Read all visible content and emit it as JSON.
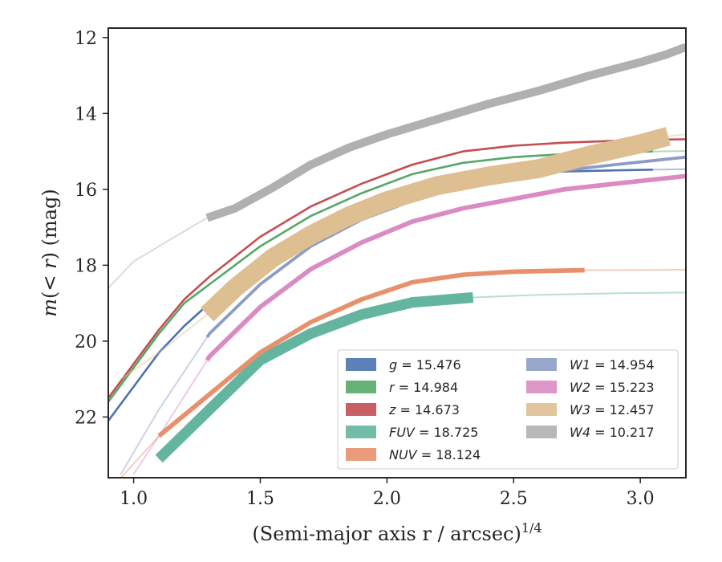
{
  "chart_data": {
    "type": "line",
    "title": "",
    "xlabel": "(Semi-major axis r / arcsec)",
    "xlabel_superscript": "1/4",
    "ylabel": "m(< r) (mag)",
    "xlim": [
      0.9,
      3.18
    ],
    "ylim": [
      23.6,
      11.75
    ],
    "y_inverted": true,
    "x_ticks": [
      1.0,
      1.5,
      2.0,
      2.5,
      3.0
    ],
    "x_tick_labels": [
      "1.0",
      "1.5",
      "2.0",
      "2.5",
      "3.0"
    ],
    "y_ticks": [
      12,
      14,
      16,
      18,
      20,
      22
    ],
    "y_tick_labels": [
      "12",
      "14",
      "16",
      "18",
      "20",
      "22"
    ],
    "grid": false,
    "legend_placement": "lower-right",
    "series": [
      {
        "name": "g = 15.476",
        "band": "g",
        "value": "15.476",
        "color": "#4c72b0",
        "x": [
          0.9,
          1.0,
          1.1,
          1.2,
          1.3,
          1.5,
          1.7,
          1.9,
          2.1,
          2.3,
          2.5,
          2.7,
          2.9,
          3.05,
          3.18
        ],
        "y": [
          22.1,
          21.2,
          20.3,
          19.6,
          19.0,
          18.0,
          17.2,
          16.6,
          16.05,
          15.75,
          15.6,
          15.53,
          15.5,
          15.48,
          15.47
        ],
        "thick_x": [
          0.9,
          3.05
        ],
        "band_width": 0.04
      },
      {
        "name": "r = 14.984",
        "band": "r",
        "value": "14.984",
        "color": "#55a868",
        "x": [
          0.9,
          1.0,
          1.1,
          1.2,
          1.3,
          1.5,
          1.7,
          1.9,
          2.1,
          2.3,
          2.5,
          2.7,
          2.9,
          3.05,
          3.18
        ],
        "y": [
          21.6,
          20.7,
          19.8,
          19.0,
          18.5,
          17.5,
          16.7,
          16.1,
          15.6,
          15.3,
          15.15,
          15.07,
          15.03,
          15.0,
          14.99
        ],
        "thick_x": [
          0.9,
          3.05
        ],
        "band_width": 0.04
      },
      {
        "name": "z = 14.673",
        "band": "z",
        "value": "14.673",
        "color": "#c44e52",
        "x": [
          0.9,
          1.0,
          1.1,
          1.2,
          1.3,
          1.5,
          1.7,
          1.9,
          2.1,
          2.3,
          2.5,
          2.7,
          2.9,
          3.05,
          3.18
        ],
        "y": [
          21.5,
          20.6,
          19.7,
          18.9,
          18.3,
          17.25,
          16.45,
          15.85,
          15.35,
          15.0,
          14.85,
          14.77,
          14.72,
          14.69,
          14.68
        ],
        "thick_x": [
          0.9,
          3.18
        ],
        "band_width": 0.04
      },
      {
        "name": "FUV = 18.725",
        "band": "FUV",
        "value": "18.725",
        "color": "#64b5a0",
        "x": [
          1.1,
          1.3,
          1.5,
          1.7,
          1.9,
          2.1,
          2.34,
          2.6,
          2.9,
          3.18
        ],
        "y": [
          23.1,
          21.8,
          20.5,
          19.8,
          19.3,
          18.98,
          18.85,
          18.78,
          18.74,
          18.72
        ],
        "thick_x": [
          1.1,
          2.34
        ],
        "band_width": 0.28
      },
      {
        "name": "NUV = 18.124",
        "band": "NUV",
        "value": "18.124",
        "color": "#e8906c",
        "x": [
          0.95,
          1.1,
          1.3,
          1.5,
          1.7,
          1.9,
          2.1,
          2.3,
          2.5,
          2.78,
          3.18
        ],
        "y": [
          23.6,
          22.5,
          21.4,
          20.3,
          19.5,
          18.9,
          18.45,
          18.25,
          18.17,
          18.13,
          18.12
        ],
        "thick_x": [
          1.1,
          2.78
        ],
        "band_width": 0.12
      },
      {
        "name": "W1 = 14.954",
        "band": "W1",
        "value": "14.954",
        "color": "#8d9cc5",
        "x": [
          0.95,
          1.1,
          1.3,
          1.5,
          1.7,
          1.9,
          2.1,
          2.3,
          2.5,
          2.7,
          2.9,
          3.18
        ],
        "y": [
          23.5,
          21.8,
          19.8,
          18.5,
          17.5,
          16.8,
          16.3,
          15.9,
          15.7,
          15.5,
          15.35,
          15.15
        ],
        "thick_x": [
          1.29,
          3.18
        ],
        "band_width": 0.08
      },
      {
        "name": "W2 = 15.223",
        "band": "W2",
        "value": "15.223",
        "color": "#da8bc3",
        "x": [
          1.0,
          1.1,
          1.3,
          1.5,
          1.7,
          1.9,
          2.1,
          2.3,
          2.5,
          2.7,
          2.9,
          3.18
        ],
        "y": [
          23.5,
          22.5,
          20.4,
          19.1,
          18.1,
          17.4,
          16.85,
          16.5,
          16.25,
          16.0,
          15.85,
          15.65
        ],
        "thick_x": [
          1.29,
          3.18
        ],
        "band_width": 0.12
      },
      {
        "name": "W3 = 12.457",
        "band": "W3",
        "value": "12.457",
        "color": "#ddbf92",
        "x": [
          0.95,
          1.1,
          1.29,
          1.4,
          1.55,
          1.7,
          1.85,
          2.0,
          2.2,
          2.4,
          2.6,
          2.8,
          3.0,
          3.11,
          3.18
        ],
        "y": [
          21.0,
          20.3,
          19.3,
          18.6,
          17.8,
          17.2,
          16.7,
          16.3,
          15.9,
          15.65,
          15.45,
          15.1,
          14.8,
          14.6,
          14.55
        ],
        "thick_x": [
          1.29,
          3.11
        ],
        "band_width": 0.5
      },
      {
        "name": "W4 = 10.217",
        "band": "W4",
        "value": "10.217",
        "color": "#b0b0b0",
        "x": [
          0.9,
          1.0,
          1.15,
          1.29,
          1.4,
          1.55,
          1.7,
          1.85,
          2.0,
          2.2,
          2.4,
          2.6,
          2.8,
          3.0,
          3.1,
          3.18
        ],
        "y": [
          18.6,
          17.9,
          17.3,
          16.75,
          16.5,
          15.95,
          15.35,
          14.9,
          14.55,
          14.15,
          13.75,
          13.4,
          13.0,
          12.65,
          12.45,
          12.25
        ],
        "thick_x": [
          1.29,
          3.18
        ],
        "band_width": 0.22
      }
    ]
  }
}
